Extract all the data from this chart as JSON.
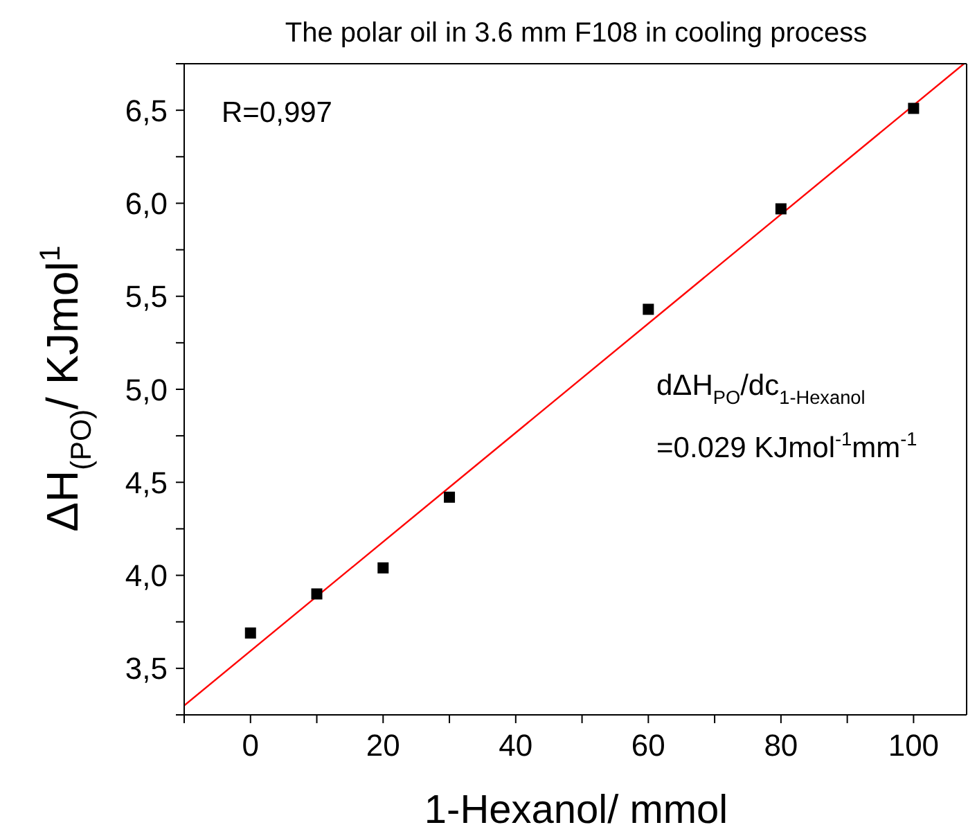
{
  "chart_data": {
    "type": "scatter",
    "title": "The polar oil in 3.6 mm F108 in cooling process",
    "xlabel": "1-Hexanol/ mmol",
    "ylabel": "ΔH$_{(PO)}$/ KJmol$^{1}$",
    "annotations": [
      "R=0,997",
      "dΔH$_{PO}$/dc$_{1-Hexanol}$",
      "=0.029 KJmol$^{-1}$mm$^{-1}$"
    ],
    "series": [
      {
        "color": "#000000",
        "x": [
          0,
          10,
          20,
          30,
          60,
          80,
          100
        ],
        "values": [
          3.69,
          3.9,
          4.04,
          4.42,
          5.43,
          5.97,
          6.51
        ]
      },
      {
        "type": "line",
        "marker": "none",
        "color": "#ff0000",
        "x": [
          -10,
          107.6
        ],
        "values": [
          3.3,
          6.75
        ]
      }
    ],
    "xlim": [
      -10,
      108
    ],
    "ylim": [
      3.25,
      6.75
    ],
    "xticks": [
      {
        "value": -10,
        "label": null
      },
      0,
      {
        "value": 10,
        "label": null
      },
      20,
      {
        "value": 30,
        "label": null
      },
      40,
      {
        "value": 50,
        "label": null
      },
      60,
      {
        "value": 70,
        "label": null
      },
      80,
      {
        "value": 90,
        "label": null
      },
      100
    ],
    "yticks": [
      {
        "value": 3.25,
        "label": null
      },
      {
        "value": 3.5,
        "label": "3,5"
      },
      {
        "value": 3.75,
        "label": null
      },
      {
        "value": 4.0,
        "label": "4,0"
      },
      {
        "value": 4.25,
        "label": null
      },
      {
        "value": 4.5,
        "label": "4,5"
      },
      {
        "value": 4.75,
        "label": null
      },
      {
        "value": 5.0,
        "label": "5,0"
      },
      {
        "value": 5.25,
        "label": null
      },
      {
        "value": 5.5,
        "label": "5,5"
      },
      {
        "value": 5.75,
        "label": null
      },
      {
        "value": 6.0,
        "label": "6,0"
      },
      {
        "value": 6.25,
        "label": null
      },
      {
        "value": 6.5,
        "label": "6,5"
      },
      {
        "value": 6.75,
        "label": null
      }
    ],
    "marker": "square"
  }
}
